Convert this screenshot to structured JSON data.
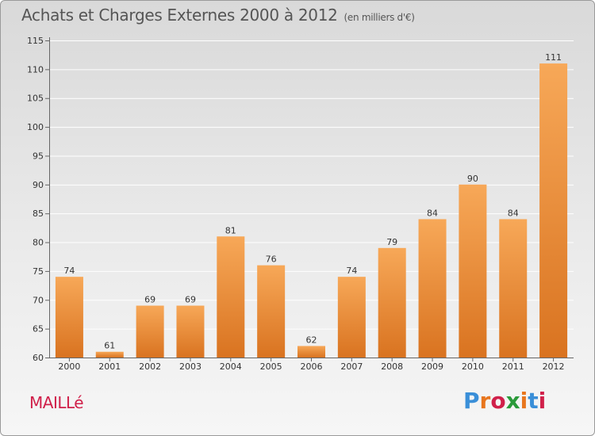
{
  "header": {
    "title": "Achats et Charges Externes 2000 à 2012",
    "subtitle": "(en milliers d'€)"
  },
  "footer": {
    "town": "MAILLé",
    "logo": "Proxiti",
    "logo_colors": [
      "#3a8fd8",
      "#e8761e",
      "#d0204a",
      "#2a9a3a",
      "#e8761e",
      "#3a8fd8",
      "#d0204a"
    ]
  },
  "colors": {
    "bar_top": "#f7a858",
    "bar_bottom": "#d97320",
    "grid": "#ffffff"
  },
  "chart_data": {
    "type": "bar",
    "title": "Achats et Charges Externes 2000 à 2012",
    "subtitle": "(en milliers d'€)",
    "categories": [
      "2000",
      "2001",
      "2002",
      "2003",
      "2004",
      "2005",
      "2006",
      "2007",
      "2008",
      "2009",
      "2010",
      "2011",
      "2012"
    ],
    "values": [
      74,
      61,
      69,
      69,
      81,
      76,
      62,
      74,
      79,
      84,
      90,
      84,
      111
    ],
    "data_labels": [
      "74",
      "61",
      "69",
      "69",
      "81",
      "76",
      "62",
      "74",
      "79",
      "84",
      "90",
      "84",
      "111"
    ],
    "ylim": [
      60,
      115
    ],
    "yticks": [
      60,
      65,
      70,
      75,
      80,
      85,
      90,
      95,
      100,
      105,
      110,
      115
    ],
    "ytick_labels": [
      "60",
      "65",
      "70",
      "75",
      "80",
      "85",
      "90",
      "95",
      "100",
      "105",
      "110",
      "115"
    ],
    "grid": true,
    "legend": false
  }
}
